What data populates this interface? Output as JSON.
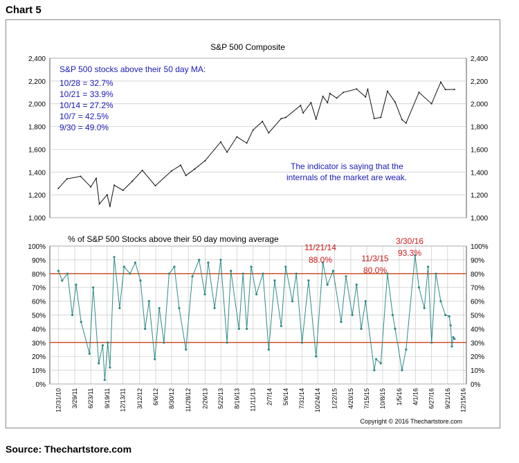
{
  "heading": "Chart 5",
  "source": "Source: Thechartstore.com",
  "chart_data": [
    {
      "type": "line",
      "title": "S&P 500 Composite",
      "ylim": [
        1000,
        2400
      ],
      "yticks": [
        "1,000",
        "1,200",
        "1,400",
        "1,600",
        "1,800",
        "2,000",
        "2,200",
        "2,400"
      ],
      "ytick_values": [
        1000,
        1200,
        1400,
        1600,
        1800,
        2000,
        2200,
        2400
      ],
      "grid": true,
      "series": [
        {
          "x": [
            "2010-12-31",
            "2011-02-15",
            "2011-04-29",
            "2011-06-23",
            "2011-07-22",
            "2011-08-08",
            "2011-09-19",
            "2011-10-04",
            "2011-10-27",
            "2011-12-13",
            "2012-02-01",
            "2012-03-26",
            "2012-06-04",
            "2012-08-30",
            "2012-10-18",
            "2012-11-15",
            "2012-12-31",
            "2013-02-26",
            "2013-05-21",
            "2013-06-24",
            "2013-08-16",
            "2013-10-08",
            "2013-11-11",
            "2013-12-31",
            "2014-02-03",
            "2014-04-11",
            "2014-05-06",
            "2014-07-24",
            "2014-08-07",
            "2014-09-18",
            "2014-10-15",
            "2014-11-21",
            "2014-12-16",
            "2014-12-29",
            "2015-02-03",
            "2015-03-11",
            "2015-05-21",
            "2015-07-08",
            "2015-07-20",
            "2015-08-24",
            "2015-09-28",
            "2015-11-03",
            "2015-12-14",
            "2016-01-20",
            "2016-02-11",
            "2016-04-20",
            "2016-06-27",
            "2016-08-15",
            "2016-09-09",
            "2016-10-28"
          ],
          "values": [
            1257,
            1340,
            1363,
            1270,
            1345,
            1120,
            1200,
            1100,
            1285,
            1240,
            1320,
            1415,
            1280,
            1410,
            1460,
            1370,
            1425,
            1500,
            1665,
            1575,
            1710,
            1655,
            1770,
            1845,
            1745,
            1870,
            1880,
            1985,
            1920,
            2010,
            1865,
            2065,
            2010,
            2090,
            2050,
            2100,
            2130,
            2060,
            2128,
            1870,
            1880,
            2110,
            2015,
            1860,
            1830,
            2100,
            2000,
            2190,
            2125,
            2126
          ]
        }
      ],
      "annotations": [
        "S&P 500 stocks above their 50 day MA:",
        "10/28 = 32.7%",
        "10/21 = 33.9%",
        "10/14 = 27.2%",
        "10/7 = 42.5%",
        "9/30 = 49.0%",
        "The indicator is saying that the",
        "internals of the market are weak."
      ]
    },
    {
      "type": "line",
      "title": "% of S&P 500 Stocks above their 50 day moving average",
      "ylim": [
        0,
        100
      ],
      "yticks": [
        "0%",
        "10%",
        "20%",
        "30%",
        "40%",
        "50%",
        "60%",
        "70%",
        "80%",
        "90%",
        "100%"
      ],
      "ytick_values": [
        0,
        10,
        20,
        30,
        40,
        50,
        60,
        70,
        80,
        90,
        100
      ],
      "reference_lines": [
        80,
        30
      ],
      "grid": true,
      "x_tick_labels": [
        "12/31/10",
        "3/29/11",
        "6/23/11",
        "9/19/11",
        "12/13/11",
        "3/12/12",
        "6/6/12",
        "8/30/12",
        "11/28/12",
        "2/26/13",
        "5/22/13",
        "8/16/13",
        "11/11/13",
        "2/7/14",
        "5/6/14",
        "7/31/14",
        "10/24/14",
        "1/22/15",
        "4/20/15",
        "7/15/15",
        "10/8/15",
        "1/5/16",
        "4/1/16",
        "6/27/16",
        "9/21/16",
        "12/15/16"
      ],
      "series": [
        {
          "x": [
            "2010-12-31",
            "2011-01-20",
            "2011-02-18",
            "2011-03-16",
            "2011-04-05",
            "2011-05-02",
            "2011-06-16",
            "2011-07-06",
            "2011-08-05",
            "2011-08-26",
            "2011-09-06",
            "2011-09-22",
            "2011-10-04",
            "2011-10-27",
            "2011-11-25",
            "2011-12-19",
            "2012-01-20",
            "2012-02-17",
            "2012-03-16",
            "2012-04-10",
            "2012-05-01",
            "2012-06-01",
            "2012-06-25",
            "2012-07-20",
            "2012-08-17",
            "2012-09-14",
            "2012-10-10",
            "2012-11-15",
            "2012-12-20",
            "2013-01-25",
            "2013-02-25",
            "2013-03-15",
            "2013-04-18",
            "2013-05-21",
            "2013-06-24",
            "2013-07-15",
            "2013-08-27",
            "2013-09-18",
            "2013-10-08",
            "2013-11-01",
            "2013-11-29",
            "2014-01-03",
            "2014-02-03",
            "2014-03-07",
            "2014-04-11",
            "2014-05-05",
            "2014-06-10",
            "2014-07-01",
            "2014-08-01",
            "2014-09-05",
            "2014-10-15",
            "2014-11-21",
            "2014-12-15",
            "2015-01-15",
            "2015-02-27",
            "2015-03-25",
            "2015-04-28",
            "2015-05-21",
            "2015-06-15",
            "2015-07-08",
            "2015-08-24",
            "2015-09-03",
            "2015-09-28",
            "2015-11-03",
            "2015-12-01",
            "2015-12-14",
            "2016-01-20",
            "2016-02-11",
            "2016-03-30",
            "2016-04-20",
            "2016-05-19",
            "2016-06-08",
            "2016-06-27",
            "2016-07-20",
            "2016-08-15",
            "2016-09-09",
            "2016-09-30",
            "2016-10-07",
            "2016-10-14",
            "2016-10-21",
            "2016-10-28"
          ],
          "values": [
            82,
            75,
            80,
            50,
            72,
            45,
            22,
            70,
            15,
            28,
            3,
            30,
            12,
            92,
            55,
            85,
            80,
            88,
            75,
            40,
            60,
            18,
            55,
            30,
            80,
            85,
            55,
            25,
            78,
            90,
            65,
            88,
            55,
            90,
            30,
            82,
            40,
            80,
            40,
            85,
            65,
            80,
            25,
            75,
            42,
            85,
            60,
            80,
            30,
            75,
            20,
            88,
            72,
            82,
            45,
            78,
            50,
            72,
            40,
            60,
            10,
            18,
            15,
            80,
            50,
            40,
            10,
            25,
            93.3,
            70,
            55,
            85,
            30,
            80,
            60,
            50,
            49,
            42.5,
            27.2,
            33.9,
            32.7
          ]
        }
      ],
      "annotations": [
        {
          "date": "11/21/14",
          "value": "88.0%"
        },
        {
          "date": "11/3/15",
          "value": "80.0%"
        },
        {
          "date": "3/30/16",
          "value": "93.3%"
        }
      ],
      "copyright": "Copyright © 2016 Thechartstore.com"
    }
  ],
  "colors": {
    "price_line": "#111111",
    "breadth_line": "#2e8a88",
    "reference_line": "#d05030",
    "annotation_blue": "#1a1ab8",
    "annotation_red": "#cc1a1a",
    "grid": "#c8c8c8",
    "plot_border": "#555555"
  }
}
